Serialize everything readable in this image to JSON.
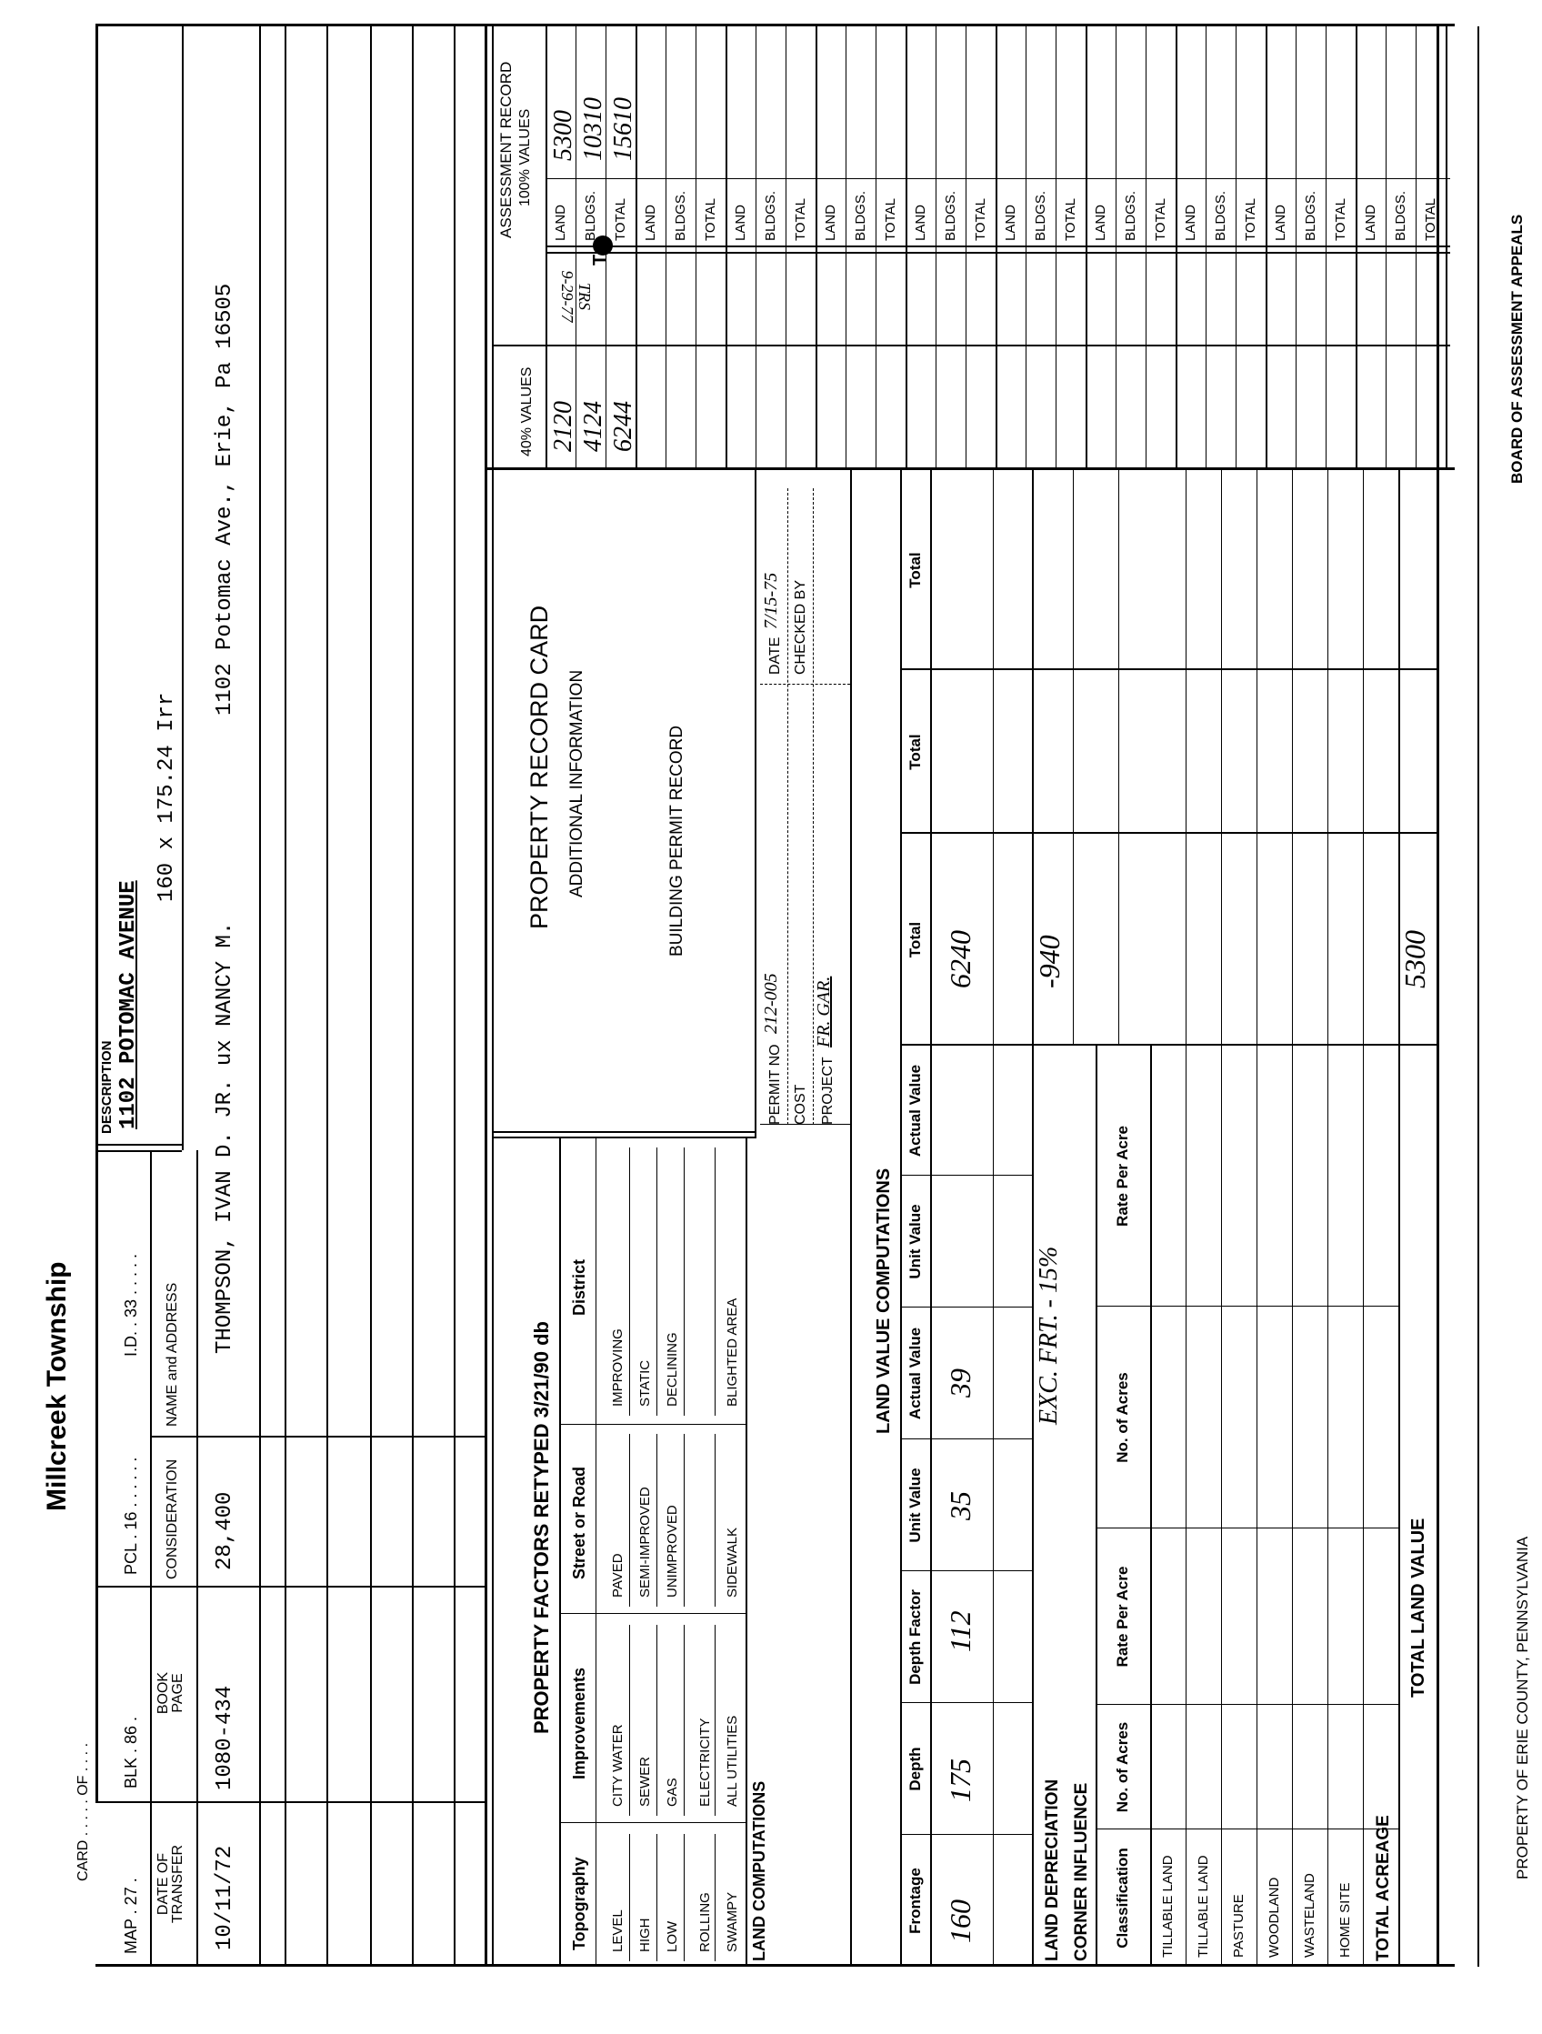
{
  "header": {
    "township": "Millcreek Township",
    "card_label": "CARD . . . . . OF . . . .",
    "map": "MAP . 27 .",
    "blk": "BLK . 86 .",
    "pcl": "PCL . 16 . . . . . .",
    "id": "I.D. . 33 . . . . .",
    "description_label": "DESCRIPTION",
    "description_line1": "1102 POTOMAC AVENUE",
    "description_line2": "160 x 175.24 Irr"
  },
  "transfer": {
    "headers": {
      "date_1": "DATE OF",
      "date_2": "TRANSFER",
      "book_1": "BOOK",
      "book_2": "PAGE",
      "consideration": "CONSIDERATION",
      "name_address": "NAME and ADDRESS"
    },
    "row": {
      "date": "10/11/72",
      "book_page": "1080-434",
      "consideration": "28,400",
      "name": "THOMPSON, IVAN D. JR. ux NANCY M.",
      "address": "1102 Potomac Ave., Erie, Pa 16505"
    }
  },
  "property_factors": {
    "title": "PROPERTY FACTORS RETYPED 3/21/90 db",
    "headers": [
      "Topography",
      "Improvements",
      "Street or Road",
      "District"
    ],
    "topography": [
      "LEVEL",
      "HIGH",
      "LOW",
      "ROLLING",
      "SWAMPY"
    ],
    "improvements": [
      "CITY WATER",
      "SEWER",
      "GAS",
      "ELECTRICITY",
      "ALL UTILITIES"
    ],
    "street": [
      "PAVED",
      "SEMI-IMPROVED",
      "UNIMPROVED",
      "",
      "SIDEWALK"
    ],
    "district": [
      "IMPROVING",
      "STATIC",
      "DECLINING",
      "",
      "BLIGHTED AREA"
    ]
  },
  "land_computations_label": "LAND COMPUTATIONS",
  "record_card": {
    "title": "PROPERTY RECORD CARD",
    "additional_info": "ADDITIONAL INFORMATION"
  },
  "permit": {
    "title": "BUILDING PERMIT RECORD",
    "permit_no_label": "PERMIT NO",
    "permit_no": "212-005",
    "cost_label": "COST",
    "project_label": "PROJECT",
    "project": "FR. GAR.",
    "date_label": "DATE",
    "date": "7/15-75",
    "checked_by_label": "CHECKED BY"
  },
  "land_value": {
    "title": "LAND VALUE COMPUTATIONS",
    "headers": [
      "Frontage",
      "Depth",
      "Depth Factor",
      "Unit Value",
      "Actual Value",
      "Unit Value",
      "Actual Value",
      "Total",
      "Total",
      "Total"
    ],
    "row": {
      "frontage": "160",
      "depth": "175",
      "depth_factor": "112",
      "unit_value": "35",
      "actual_value": "39",
      "total": "6240"
    },
    "depreciation_label": "LAND DEPRECIATION",
    "depreciation_note": "EXC. FRT. - 15%",
    "depreciation_total": "-940",
    "corner_label": "CORNER INFLUENCE",
    "class_headers": [
      "Classification",
      "No. of Acres",
      "Rate Per Acre",
      "No. of Acres",
      "Rate Per Acre"
    ],
    "classifications": [
      "TILLABLE LAND",
      "TILLABLE LAND",
      "PASTURE",
      "WOODLAND",
      "WASTELAND",
      "HOME SITE"
    ],
    "total_acreage": "TOTAL ACREAGE",
    "total_land_value_label": "TOTAL LAND VALUE",
    "total_land_value": "5300"
  },
  "assessment": {
    "title": "ASSESSMENT RECORD",
    "subtitle": "100% VALUES",
    "forty_label": "40% VALUES",
    "row_labels": [
      "LAND",
      "BLDGS.",
      "TOTAL"
    ],
    "full_values": {
      "land": "5300",
      "bldgs": "10310",
      "total": "15610"
    },
    "forty_values": {
      "land": "2120",
      "bldgs": "4124",
      "total": "6244"
    },
    "trs_label": "TRS",
    "trs_date": "9-29-77",
    "mark": "T"
  },
  "footer": {
    "property_of": "PROPERTY OF ERIE COUNTY, PENNSYLVANIA",
    "board": "BOARD OF ASSESSMENT APPEALS"
  }
}
